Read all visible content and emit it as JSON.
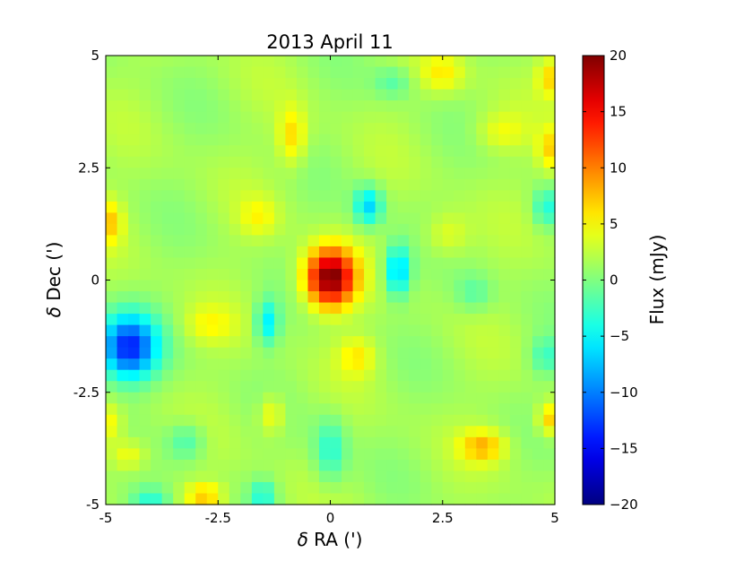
{
  "chart_data": {
    "type": "heatmap",
    "title": "2013 April 11",
    "xlabel_symbol": "δ",
    "xlabel_text": " RA (')",
    "ylabel_symbol": "δ",
    "ylabel_text": " Dec (')",
    "colorbar_label": "Flux (mJy)",
    "colormap": "jet",
    "xlim": [
      -5,
      5
    ],
    "ylim": [
      -5,
      5
    ],
    "clim": [
      -20,
      20
    ],
    "x_ticks": [
      -5,
      -2.5,
      0,
      2.5,
      5
    ],
    "x_tick_labels": [
      "-5",
      "-2.5",
      "0",
      "2.5",
      "5"
    ],
    "y_ticks": [
      -5,
      -2.5,
      0,
      2.5,
      5
    ],
    "y_tick_labels": [
      "-5",
      "-2.5",
      "0",
      "2.5",
      "5"
    ],
    "colorbar_ticks": [
      -20,
      -15,
      -10,
      -5,
      0,
      5,
      10,
      15,
      20
    ],
    "colorbar_tick_labels": [
      "−20",
      "−15",
      "−10",
      "−5",
      "0",
      "5",
      "10",
      "15",
      "20"
    ],
    "grid_size": 40,
    "background_level_mJy": 1.5,
    "features": [
      {
        "kind": "source",
        "x": 0.0,
        "y": 0.05,
        "sigma_x": 0.38,
        "sigma_y": 0.45,
        "peak_mJy": 19
      },
      {
        "kind": "negative",
        "x": -4.5,
        "y": -1.5,
        "sigma_x": 0.45,
        "sigma_y": 0.5,
        "peak_mJy": -15
      },
      {
        "kind": "negative",
        "x": 1.5,
        "y": 0.2,
        "sigma_x": 0.2,
        "sigma_y": 0.4,
        "peak_mJy": -9
      },
      {
        "kind": "negative",
        "x": 0.85,
        "y": 1.65,
        "sigma_x": 0.22,
        "sigma_y": 0.3,
        "peak_mJy": -8
      },
      {
        "kind": "negative",
        "x": -1.4,
        "y": -0.95,
        "sigma_x": 0.18,
        "sigma_y": 0.35,
        "peak_mJy": -7
      },
      {
        "kind": "negative",
        "x": 0.0,
        "y": -3.8,
        "sigma_x": 0.25,
        "sigma_y": 0.5,
        "peak_mJy": -5
      },
      {
        "kind": "negative",
        "x": -3.2,
        "y": -3.6,
        "sigma_x": 0.3,
        "sigma_y": 0.3,
        "peak_mJy": -4
      },
      {
        "kind": "negative",
        "x": -1.5,
        "y": -4.8,
        "sigma_x": 0.2,
        "sigma_y": 0.25,
        "peak_mJy": -5
      },
      {
        "kind": "negative",
        "x": -4.0,
        "y": -4.9,
        "sigma_x": 0.3,
        "sigma_y": 0.2,
        "peak_mJy": -5
      },
      {
        "kind": "negative",
        "x": 4.8,
        "y": 1.6,
        "sigma_x": 0.2,
        "sigma_y": 0.3,
        "peak_mJy": -5
      },
      {
        "kind": "negative",
        "x": 3.2,
        "y": -0.3,
        "sigma_x": 0.3,
        "sigma_y": 0.3,
        "peak_mJy": -3
      },
      {
        "kind": "negative",
        "x": 1.4,
        "y": 4.4,
        "sigma_x": 0.3,
        "sigma_y": 0.25,
        "peak_mJy": -3
      },
      {
        "kind": "negative",
        "x": 4.8,
        "y": -1.7,
        "sigma_x": 0.25,
        "sigma_y": 0.3,
        "peak_mJy": -4
      },
      {
        "kind": "positive",
        "x": -0.85,
        "y": 3.2,
        "sigma_x": 0.22,
        "sigma_y": 0.45,
        "peak_mJy": 5
      },
      {
        "kind": "positive",
        "x": -4.9,
        "y": 1.3,
        "sigma_x": 0.2,
        "sigma_y": 0.35,
        "peak_mJy": 5
      },
      {
        "kind": "positive",
        "x": 4.9,
        "y": 2.9,
        "sigma_x": 0.2,
        "sigma_y": 0.35,
        "peak_mJy": 5
      },
      {
        "kind": "positive",
        "x": 4.9,
        "y": 4.5,
        "sigma_x": 0.2,
        "sigma_y": 0.3,
        "peak_mJy": 5
      },
      {
        "kind": "positive",
        "x": 2.5,
        "y": 4.6,
        "sigma_x": 0.35,
        "sigma_y": 0.3,
        "peak_mJy": 4
      },
      {
        "kind": "positive",
        "x": 3.4,
        "y": -3.7,
        "sigma_x": 0.35,
        "sigma_y": 0.25,
        "peak_mJy": 6
      },
      {
        "kind": "positive",
        "x": -2.8,
        "y": -4.8,
        "sigma_x": 0.3,
        "sigma_y": 0.2,
        "peak_mJy": 6
      },
      {
        "kind": "positive",
        "x": -1.3,
        "y": -3.0,
        "sigma_x": 0.2,
        "sigma_y": 0.3,
        "peak_mJy": 4
      },
      {
        "kind": "positive",
        "x": 4.9,
        "y": -3.1,
        "sigma_x": 0.2,
        "sigma_y": 0.25,
        "peak_mJy": 6
      },
      {
        "kind": "positive",
        "x": -4.9,
        "y": -3.2,
        "sigma_x": 0.2,
        "sigma_y": 0.3,
        "peak_mJy": 4
      },
      {
        "kind": "positive",
        "x": -1.6,
        "y": 1.4,
        "sigma_x": 0.3,
        "sigma_y": 0.3,
        "peak_mJy": 3
      },
      {
        "kind": "positive",
        "x": 2.6,
        "y": 1.0,
        "sigma_x": 0.35,
        "sigma_y": 0.35,
        "peak_mJy": 3
      },
      {
        "kind": "positive",
        "x": 3.8,
        "y": 3.3,
        "sigma_x": 0.4,
        "sigma_y": 0.3,
        "peak_mJy": 3
      },
      {
        "kind": "positive",
        "x": 0.6,
        "y": -1.7,
        "sigma_x": 0.3,
        "sigma_y": 0.3,
        "peak_mJy": 4
      },
      {
        "kind": "positive",
        "x": -2.7,
        "y": -1.0,
        "sigma_x": 0.4,
        "sigma_y": 0.3,
        "peak_mJy": 3
      },
      {
        "kind": "positive",
        "x": -4.5,
        "y": -3.9,
        "sigma_x": 0.3,
        "sigma_y": 0.25,
        "peak_mJy": 4
      }
    ]
  }
}
